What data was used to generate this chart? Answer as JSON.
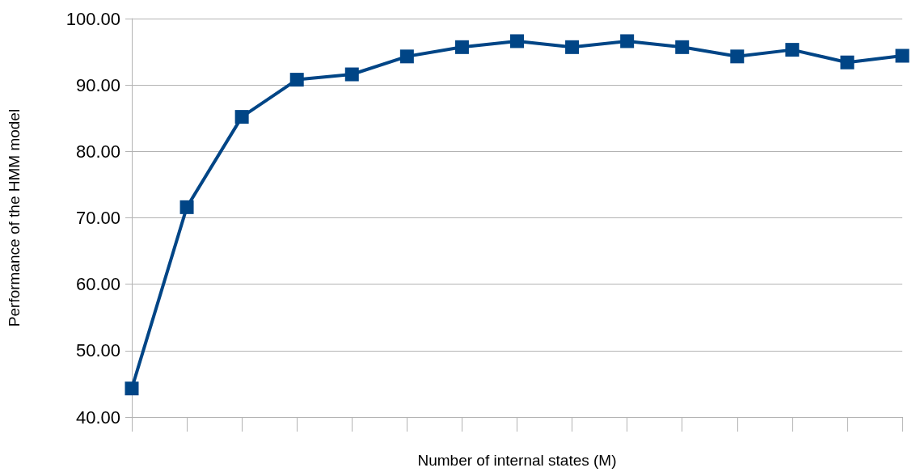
{
  "chart_data": {
    "type": "line",
    "xlabel": "Number of internal states (M)",
    "ylabel": "Performance of the HMM model",
    "categories": [
      null,
      null,
      null,
      null,
      null,
      null,
      null,
      null,
      null,
      null,
      null,
      null,
      null,
      null,
      null
    ],
    "series": [
      {
        "color": "#004586",
        "values": [
          44.3,
          71.6,
          85.2,
          90.8,
          91.6,
          94.3,
          95.7,
          96.6,
          95.7,
          96.6,
          95.7,
          94.3,
          95.3,
          93.4,
          94.4
        ]
      }
    ],
    "ylim": [
      40,
      100
    ],
    "yticks": [
      {
        "value": 40,
        "label": "40.00"
      },
      {
        "value": 50,
        "label": "50.00"
      },
      {
        "value": 60,
        "label": "60.00"
      },
      {
        "value": 70,
        "label": "70.00"
      },
      {
        "value": 80,
        "label": "80.00"
      },
      {
        "value": 90,
        "label": "90.00"
      },
      {
        "value": 100,
        "label": "100.00"
      }
    ],
    "grid": "y",
    "marker": "square",
    "line_style": "solid"
  }
}
